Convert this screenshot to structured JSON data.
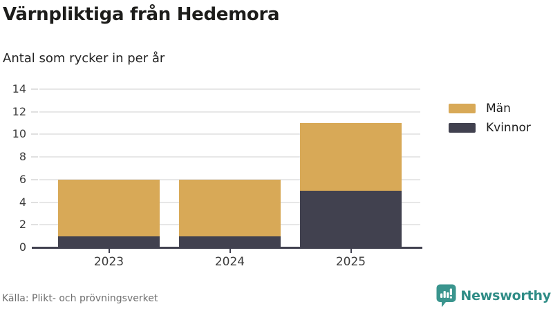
{
  "chart_data": {
    "type": "bar",
    "stacked": true,
    "title": "Värnpliktiga från Hedemora",
    "subtitle": "Antal som rycker in per år",
    "categories": [
      "2023",
      "2024",
      "2025"
    ],
    "series": [
      {
        "name": "Män",
        "color": "#d8a957",
        "values": [
          5,
          5,
          6
        ]
      },
      {
        "name": "Kvinnor",
        "color": "#41414f",
        "values": [
          1,
          1,
          5
        ]
      }
    ],
    "stack_order_bottom_to_top": [
      "Kvinnor",
      "Män"
    ],
    "totals": [
      6,
      6,
      11
    ],
    "ylim": [
      0,
      14
    ],
    "yticks": [
      0,
      2,
      4,
      6,
      8,
      10,
      12,
      14
    ],
    "xlabel": "",
    "ylabel": "",
    "grid": true,
    "legend_position": "right",
    "source": "Källa: Plikt- och prövningsverket"
  },
  "brand": {
    "name": "Newsworthy",
    "icon": "bar-chart-speech-bubble",
    "color": "#2f8c86",
    "icon_color": "#3a958e"
  },
  "colors": {
    "axis": "#41414f",
    "grid": "#e7e7e7",
    "title_text": "#1d1d1b",
    "muted_text": "#6e6e6e"
  }
}
